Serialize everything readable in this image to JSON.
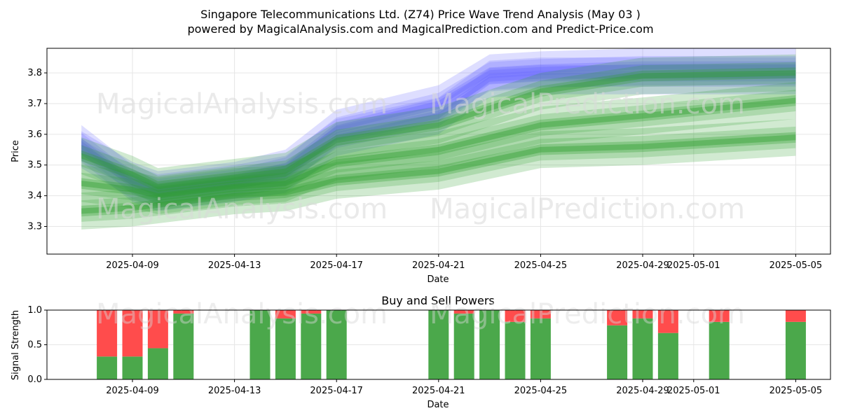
{
  "header": {
    "title": "Singapore Telecommunications Ltd. (Z74) Price Wave Trend Analysis (May 03 )",
    "subtitle": "powered by MagicalAnalysis.com and MagicalPrediction.com and Predict-Price.com"
  },
  "watermarks": {
    "left": "MagicalAnalysis.com",
    "right": "MagicalPrediction.com"
  },
  "colors": {
    "band_green": "#2e9e2e",
    "band_blue": "#6b6bff",
    "buy": "#4ba84b",
    "sell": "#ff4c4c",
    "grid": "#e6e6e6"
  },
  "chart_data": [
    {
      "type": "area",
      "title": "",
      "xlabel": "Date",
      "ylabel": "Price",
      "x_ticks": [
        "2025-04-09",
        "2025-04-13",
        "2025-04-17",
        "2025-04-21",
        "2025-04-25",
        "2025-04-29",
        "2025-05-01",
        "2025-05-05"
      ],
      "y_ticks": [
        "3.3",
        "3.4",
        "3.5",
        "3.6",
        "3.7",
        "3.8"
      ],
      "ylim": [
        3.21,
        3.88
      ],
      "grid": true,
      "series": [
        {
          "color": "blue",
          "x": [
            "2025-04-07",
            "2025-04-09",
            "2025-04-10",
            "2025-04-13",
            "2025-04-15",
            "2025-04-17",
            "2025-04-21",
            "2025-04-23",
            "2025-04-25",
            "2025-04-29",
            "2025-05-05"
          ],
          "values": [
            3.57,
            3.44,
            3.41,
            3.44,
            3.47,
            3.59,
            3.66,
            3.78,
            3.79,
            3.79,
            3.79
          ]
        },
        {
          "color": "blue",
          "x": [
            "2025-04-07",
            "2025-04-09",
            "2025-04-10",
            "2025-04-13",
            "2025-04-15",
            "2025-04-17",
            "2025-04-21",
            "2025-04-23",
            "2025-04-25",
            "2025-04-29",
            "2025-05-05"
          ],
          "values": [
            3.55,
            3.45,
            3.42,
            3.45,
            3.49,
            3.62,
            3.7,
            3.8,
            3.81,
            3.82,
            3.82
          ]
        },
        {
          "color": "green",
          "x": [
            "2025-04-07",
            "2025-04-09",
            "2025-04-10",
            "2025-04-13",
            "2025-04-15",
            "2025-04-17",
            "2025-04-21",
            "2025-04-25",
            "2025-04-29",
            "2025-05-05"
          ],
          "values": [
            3.53,
            3.47,
            3.43,
            3.46,
            3.48,
            3.58,
            3.63,
            3.74,
            3.79,
            3.8
          ]
        },
        {
          "color": "green",
          "x": [
            "2025-04-07",
            "2025-04-09",
            "2025-04-10",
            "2025-04-13",
            "2025-04-15",
            "2025-04-17",
            "2025-04-21",
            "2025-04-25",
            "2025-04-29",
            "2025-05-05"
          ],
          "values": [
            3.44,
            3.42,
            3.4,
            3.43,
            3.44,
            3.51,
            3.55,
            3.63,
            3.66,
            3.71
          ]
        },
        {
          "color": "green",
          "x": [
            "2025-04-07",
            "2025-04-09",
            "2025-04-10",
            "2025-04-13",
            "2025-04-15",
            "2025-04-17",
            "2025-04-21",
            "2025-04-25",
            "2025-04-29",
            "2025-05-05"
          ],
          "values": [
            3.35,
            3.36,
            3.37,
            3.4,
            3.41,
            3.45,
            3.48,
            3.55,
            3.56,
            3.59
          ]
        }
      ]
    },
    {
      "type": "bar",
      "title": "Buy and Sell Powers",
      "xlabel": "Date",
      "ylabel": "Signal Strength",
      "x_ticks": [
        "2025-04-09",
        "2025-04-13",
        "2025-04-17",
        "2025-04-21",
        "2025-04-25",
        "2025-04-29",
        "2025-05-01",
        "2025-05-05"
      ],
      "y_ticks": [
        "0.0",
        "0.5",
        "1.0"
      ],
      "ylim": [
        0,
        1
      ],
      "categories": [
        "2025-04-08",
        "2025-04-09",
        "2025-04-10",
        "2025-04-11",
        "2025-04-14",
        "2025-04-15",
        "2025-04-16",
        "2025-04-17",
        "2025-04-21",
        "2025-04-22",
        "2025-04-23",
        "2025-04-24",
        "2025-04-25",
        "2025-04-28",
        "2025-04-29",
        "2025-04-30",
        "2025-05-02",
        "2025-05-05"
      ],
      "series": [
        {
          "color": "buy",
          "values": [
            0.33,
            0.33,
            0.45,
            0.95,
            1.0,
            0.88,
            0.95,
            1.0,
            1.0,
            0.95,
            1.0,
            0.83,
            0.88,
            0.78,
            0.88,
            0.67,
            0.83,
            0.83
          ]
        },
        {
          "color": "sell",
          "values": [
            0.67,
            0.67,
            0.55,
            0.05,
            0.0,
            0.12,
            0.05,
            0.0,
            0.0,
            0.05,
            0.0,
            0.17,
            0.12,
            0.22,
            0.12,
            0.33,
            0.17,
            0.17
          ]
        }
      ]
    }
  ]
}
